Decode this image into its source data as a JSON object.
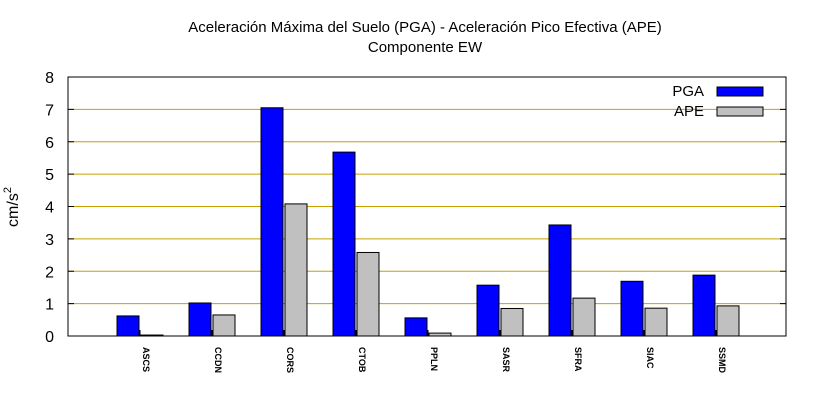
{
  "chart_data": {
    "type": "bar",
    "title": "Aceleración Máxima del Suelo (PGA) -  Aceleración Pico Efectiva (APE)",
    "subtitle": "Componente EW",
    "ylabel": "cm/s",
    "ylabel_superscript": "2",
    "xlabel": "",
    "ylim": [
      0,
      8
    ],
    "yticks": [
      0,
      1,
      2,
      3,
      4,
      5,
      6,
      7,
      8
    ],
    "grid": true,
    "legend_position": "top-right",
    "categories": [
      "ASCS",
      "CCDN",
      "CORS",
      "CTOB",
      "PPLN",
      "SASR",
      "SFRA",
      "SIAC",
      "SSMD"
    ],
    "series": [
      {
        "name": "PGA",
        "color": "#0000ff",
        "values": [
          0.62,
          1.02,
          7.05,
          5.68,
          0.56,
          1.57,
          3.43,
          1.69,
          1.88
        ]
      },
      {
        "name": "APE",
        "color": "#c0c0c0",
        "values": [
          0.03,
          0.65,
          4.08,
          2.58,
          0.09,
          0.85,
          1.17,
          0.86,
          0.93
        ]
      }
    ],
    "grid_color": "#c8a000"
  }
}
